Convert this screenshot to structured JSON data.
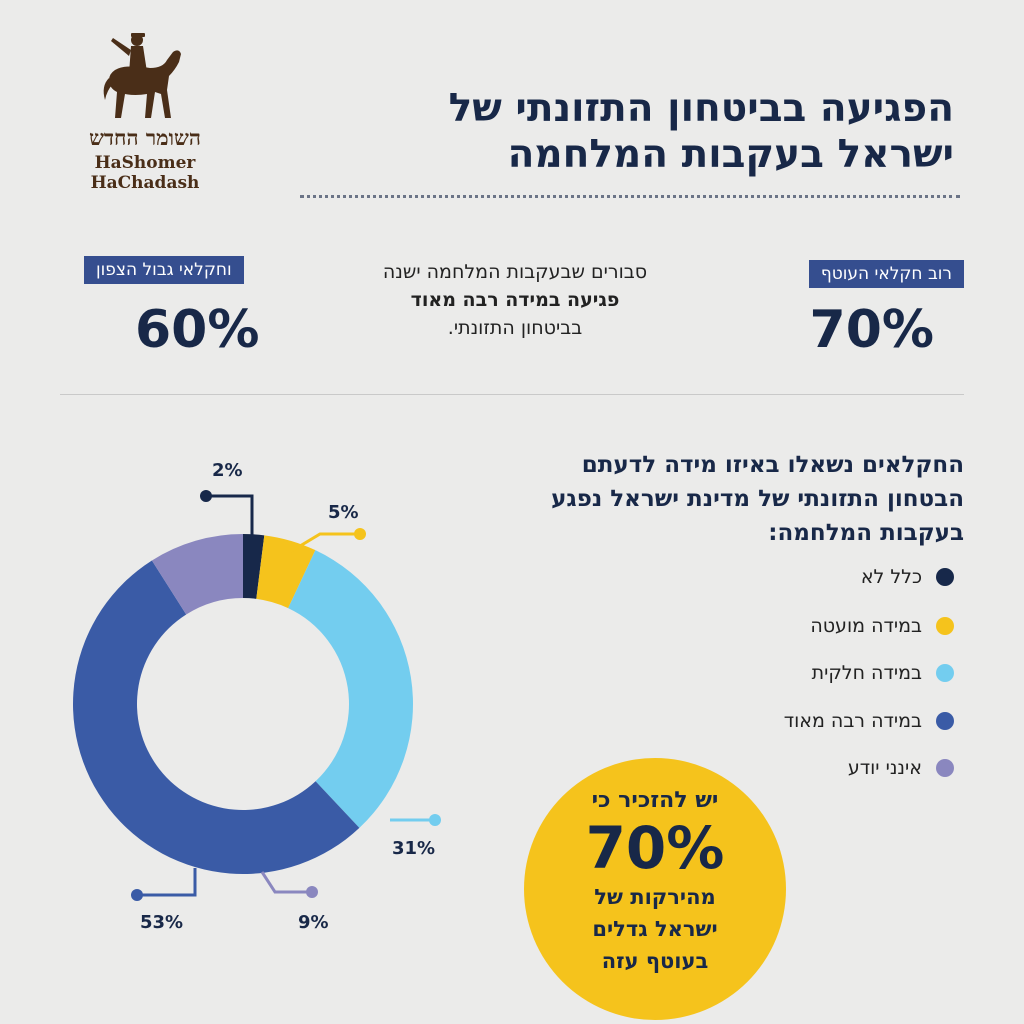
{
  "brand": {
    "name_he": "השומר החדש",
    "name_en": "HaShomer HaChadash"
  },
  "title": {
    "line1": "הפגיעה בביטחון התזונתי של",
    "line2": "ישראל בעקבות המלחמה"
  },
  "stats": {
    "left": {
      "label": "וחקלאי גבול הצפון",
      "value": "60%"
    },
    "right": {
      "label": "רוב חקלאי העוטף",
      "value": "70%"
    },
    "middle": {
      "line1": "סבורים שבעקבות המלחמה ישנה",
      "line2": "פגיעה במידה רבה מאוד",
      "line3": "בביטחון התזונתי."
    }
  },
  "question": {
    "line1": "החקלאים נשאלו באיזו מידה לדעתם",
    "line2": "הבטחון התזונתי של מדינת ישראל נפגע",
    "line3": "בעקבות המלחמה:"
  },
  "callout": {
    "line1": "יש להזכיר כי",
    "value": "70%",
    "line2": "מהירקות של",
    "line3": "ישראל גדלים",
    "line4": "בעוטף עזה"
  },
  "colors": {
    "navy": "#17284a",
    "yellow": "#f5c31c",
    "light_blue": "#73cdef",
    "blue": "#3a5ba6",
    "purple": "#8a87bf"
  },
  "chart_data": {
    "type": "pie",
    "donut": true,
    "categories": [
      "כלל לא",
      "במידה מועטה",
      "במידה חלקית",
      "במידה רבה מאוד",
      "אינני יודע"
    ],
    "values": [
      2,
      5,
      31,
      53,
      9
    ],
    "labels": [
      "2%",
      "5%",
      "31%",
      "53%",
      "9%"
    ],
    "colors": [
      "#17284a",
      "#f5c31c",
      "#73cdef",
      "#3a5ba6",
      "#8a87bf"
    ],
    "legend_position": "right"
  }
}
